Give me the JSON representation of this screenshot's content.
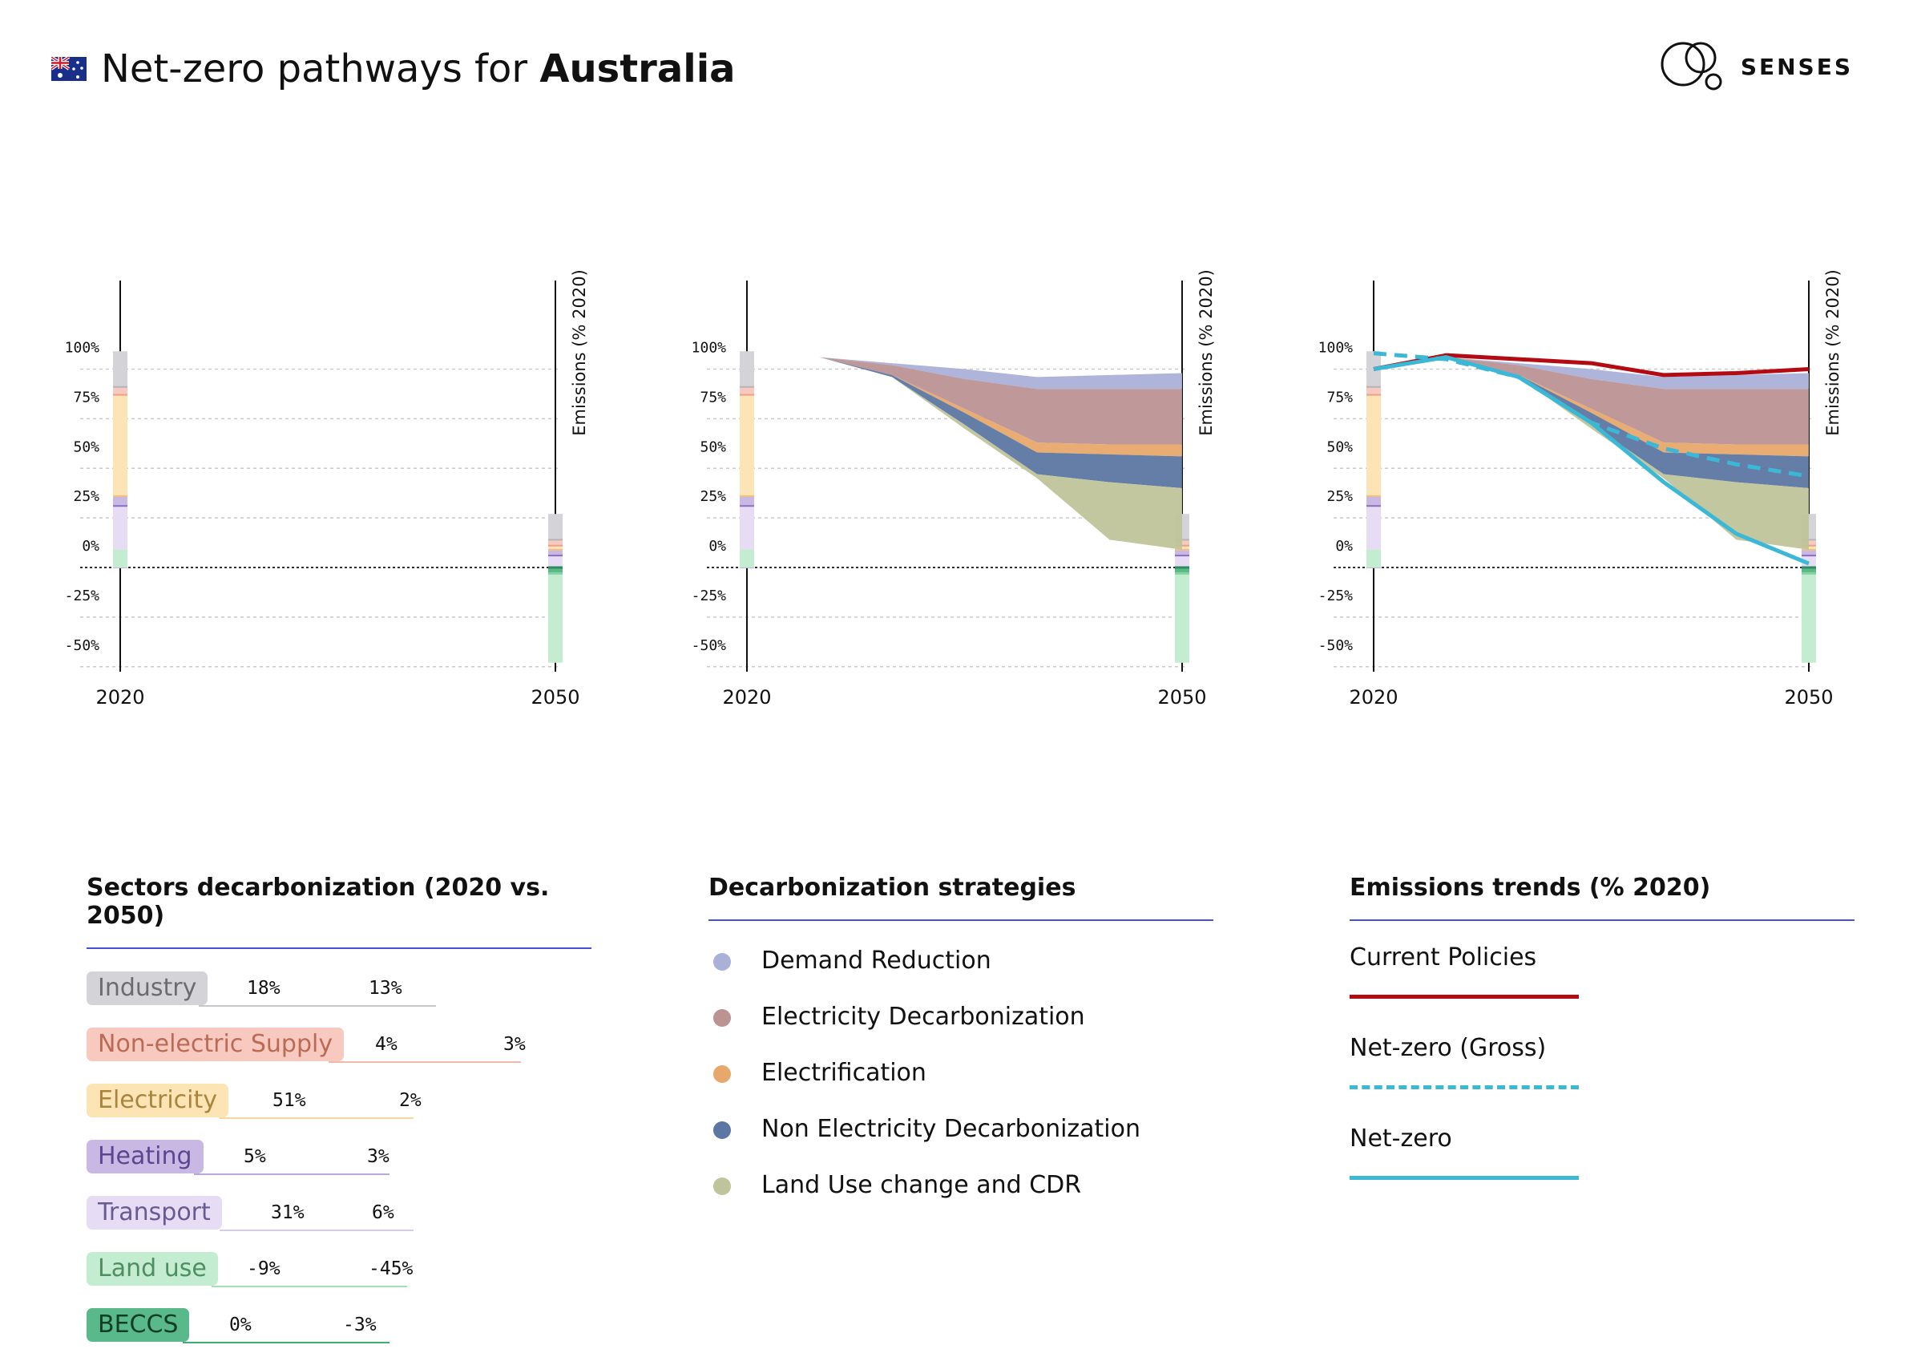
{
  "header": {
    "title_prefix": "Net-zero pathways for ",
    "title_country": "Australia",
    "flag_icon": "australia-flag-icon"
  },
  "logo": {
    "text": "SENSES",
    "icon": "senses-logo-icon"
  },
  "chart_data": [
    {
      "type": "area",
      "panel": "sectors",
      "x_ticks": [
        "2020",
        "2050"
      ],
      "y_ticks": [
        "100%",
        "75%",
        "50%",
        "25%",
        "0%",
        "-25%",
        "-50%"
      ],
      "ylabel": "Emissions (% 2020)",
      "ylim": [
        -60,
        108
      ],
      "stacked_sectors": [
        {
          "name": "Industry",
          "y2020": 18,
          "y2050": 13
        },
        {
          "name": "Non-electric Supply",
          "y2020": 4,
          "y2050": 3
        },
        {
          "name": "Electricity",
          "y2020": 51,
          "y2050": 2
        },
        {
          "name": "Heating",
          "y2020": 5,
          "y2050": 3
        },
        {
          "name": "Transport",
          "y2020": 31,
          "y2050": 6
        },
        {
          "name": "Land use",
          "y2020": -9,
          "y2050": -45
        },
        {
          "name": "BECCS",
          "y2020": 0,
          "y2050": -3
        }
      ]
    },
    {
      "type": "area",
      "panel": "strategies",
      "x_ticks": [
        "2020",
        "2050"
      ],
      "y_ticks": [
        "100%",
        "75%",
        "50%",
        "25%",
        "0%",
        "-25%",
        "-50%"
      ],
      "ylabel": "Emissions (% 2020)",
      "ylim": [
        -60,
        108
      ],
      "x": [
        2020,
        2025,
        2030,
        2035,
        2040,
        2045,
        2050
      ],
      "series": [
        {
          "name": "Demand Reduction",
          "upper": [
            100,
            106,
            103,
            100,
            96,
            97,
            98
          ],
          "lower": [
            100,
            106,
            102,
            95,
            90,
            90,
            90
          ]
        },
        {
          "name": "Electricity Decarbonization",
          "upper": [
            100,
            106,
            102,
            95,
            90,
            90,
            90
          ],
          "lower": [
            100,
            106,
            97,
            80,
            63,
            62,
            62
          ]
        },
        {
          "name": "Electrification",
          "upper": [
            100,
            106,
            97,
            80,
            63,
            62,
            62
          ],
          "lower": [
            100,
            106,
            97,
            78,
            58,
            57,
            56
          ]
        },
        {
          "name": "Non Electricity Decarbonization",
          "upper": [
            100,
            106,
            97,
            78,
            58,
            57,
            56
          ],
          "lower": [
            100,
            106,
            96,
            72,
            47,
            43,
            40
          ]
        },
        {
          "name": "Land Use change and CDR",
          "upper": [
            100,
            106,
            96,
            72,
            47,
            43,
            40
          ],
          "lower": [
            100,
            106,
            96,
            70,
            45,
            14,
            9
          ]
        }
      ]
    },
    {
      "type": "line",
      "panel": "trends",
      "x_ticks": [
        "2020",
        "2050"
      ],
      "y_ticks": [
        "100%",
        "75%",
        "50%",
        "25%",
        "0%",
        "-25%",
        "-50%"
      ],
      "ylabel": "Emissions (% 2020)",
      "ylim": [
        -60,
        108
      ],
      "x": [
        2020,
        2025,
        2030,
        2035,
        2040,
        2045,
        2050
      ],
      "series": [
        {
          "name": "Current Policies",
          "values": [
            100,
            107,
            105,
            103,
            97,
            98,
            100
          ]
        },
        {
          "name": "Net-zero (Gross)",
          "values": [
            108,
            105,
            96,
            73,
            60,
            52,
            46
          ]
        },
        {
          "name": "Net-zero",
          "values": [
            100,
            106,
            96,
            73,
            43,
            17,
            2
          ]
        }
      ]
    }
  ],
  "sectors_legend": {
    "title": "Sectors decarbonization (2020 vs. 2050)",
    "items": [
      {
        "label": "Industry",
        "v2020": "18%",
        "v2050": "13%",
        "bg": "#d4d4d8",
        "fg": "#6b6b70",
        "line": "#c6c6cc"
      },
      {
        "label": "Non-electric Supply",
        "v2020": "4%",
        "v2050": "3%",
        "bg": "#f7c9bf",
        "fg": "#b96b58",
        "line": "#f2b8aa"
      },
      {
        "label": "Electricity",
        "v2020": "51%",
        "v2050": "2%",
        "bg": "#fde4b4",
        "fg": "#a8853c",
        "line": "#f9d69a"
      },
      {
        "label": "Heating",
        "v2020": "5%",
        "v2050": "3%",
        "bg": "#c9b8e4",
        "fg": "#5b4790",
        "line": "#b9a6da"
      },
      {
        "label": "Transport",
        "v2020": "31%",
        "v2050": "6%",
        "bg": "#e6ddf4",
        "fg": "#6a5a92",
        "line": "#d6cbea"
      },
      {
        "label": "Land use",
        "v2020": "-9%",
        "v2050": "-45%",
        "bg": "#c4ecd0",
        "fg": "#4f8e62",
        "line": "#a6e0b8"
      },
      {
        "label": "BECCS",
        "v2020": "0%",
        "v2050": "-3%",
        "bg": "#5ab98a",
        "fg": "#123d27",
        "line": "#3fae74"
      }
    ]
  },
  "strategies_legend": {
    "title": "Decarbonization strategies",
    "items": [
      {
        "label": "Demand Reduction",
        "color": "#aab0d8"
      },
      {
        "label": "Electricity Decarbonization",
        "color": "#bc9393"
      },
      {
        "label": "Electrification",
        "color": "#e8a86c"
      },
      {
        "label": "Non Electricity Decarbonization",
        "color": "#5c77a3"
      },
      {
        "label": "Land Use change and CDR",
        "color": "#bfc49a"
      }
    ]
  },
  "trends_legend": {
    "title": "Emissions trends (% 2020)",
    "items": [
      {
        "label": "Current Policies",
        "color": "#b40b12",
        "style": "solid"
      },
      {
        "label": "Net-zero (Gross)",
        "color": "#3bb8d6",
        "style": "dashed"
      },
      {
        "label": "Net-zero",
        "color": "#3bb8d6",
        "style": "solid"
      }
    ]
  },
  "colors": {
    "industry": "#d4d4d8",
    "nonelec": "#f7c9bf",
    "electricity": "#fde4b4",
    "heating": "#c9b8e4",
    "transport": "#e6ddf4",
    "landuse": "#c4ecd0",
    "beccs": "#5ab98a",
    "accent_rule": "#4450d8"
  }
}
